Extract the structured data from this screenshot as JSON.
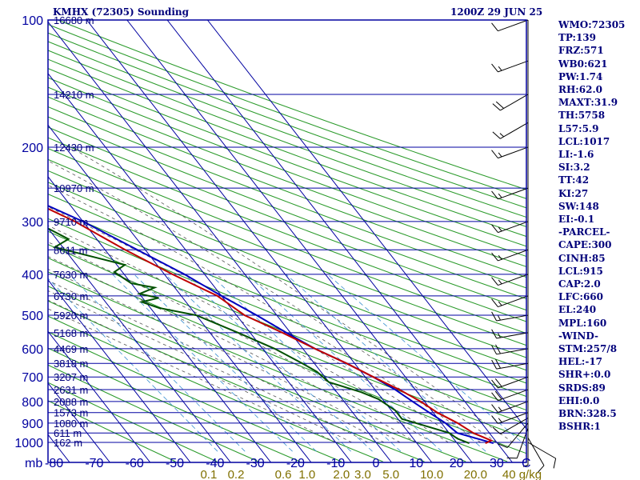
{
  "header": {
    "title": "KMHX (72305) Sounding",
    "datetime": "1200Z 29 JUN 25"
  },
  "indices": [
    "WMO:72305",
    "TP:139",
    "FRZ:571",
    "WB0:621",
    "PW:1.74",
    "RH:62.0",
    "MAXT:31.9",
    "TH:5758",
    "L57:5.9",
    "LCL:1017",
    "LI:-1.6",
    "SI:3.2",
    "TT:42",
    "KI:27",
    "SW:148",
    "EI:-0.1",
    "-PARCEL-",
    "CAPE:300",
    "CINH:85",
    "LCL:915",
    "CAP:2.0",
    "LFC:660",
    "EL:240",
    "MPL:160",
    "-WIND-",
    "STM:257/8",
    "HEL:-17",
    "SHR+:0.0",
    "SRDS:89",
    "EHI:0.0",
    "BRN:328.5",
    "BSHR:1"
  ],
  "colors": {
    "frame": "#0000a0",
    "isotherm": "#0000a0",
    "dry_adiabat": "#2a9a2a",
    "moist_adiabat": "#555555",
    "mixing_ratio": "#3a8fd0",
    "temperature": "#c00000",
    "dewpoint": "#005000",
    "parcel": "#0000c0",
    "mixing_label": "#807000",
    "text": "#00007b"
  },
  "chart_data": {
    "type": "skew-t",
    "pressure_levels": [
      100,
      200,
      300,
      400,
      500,
      600,
      700,
      800,
      900,
      1000
    ],
    "pressure_unit": "mb",
    "height_labels": [
      {
        "p": 100,
        "label": "16680 m"
      },
      {
        "p": 150,
        "label": "14210 m"
      },
      {
        "p": 200,
        "label": "12430 m"
      },
      {
        "p": 250,
        "label": "10970 m"
      },
      {
        "p": 300,
        "label": "9710 m"
      },
      {
        "p": 350,
        "label": "8611 m"
      },
      {
        "p": 400,
        "label": "7630 m"
      },
      {
        "p": 450,
        "label": "6730 m"
      },
      {
        "p": 500,
        "label": "5920 m"
      },
      {
        "p": 550,
        "label": "5168 m"
      },
      {
        "p": 600,
        "label": "4469 m"
      },
      {
        "p": 650,
        "label": "3818 m"
      },
      {
        "p": 700,
        "label": "3207 m"
      },
      {
        "p": 750,
        "label": "2631 m"
      },
      {
        "p": 800,
        "label": "2088 m"
      },
      {
        "p": 850,
        "label": "1573 m"
      },
      {
        "p": 900,
        "label": "1080 m"
      },
      {
        "p": 950,
        "label": "611 m"
      },
      {
        "p": 1000,
        "label": "162 m"
      }
    ],
    "temp_ticks": [
      -80,
      -70,
      -60,
      -50,
      -40,
      -30,
      -20,
      -10,
      0,
      10,
      20,
      30
    ],
    "temp_tick_labels": [
      "-80",
      "-70",
      "-60",
      "-50",
      "-40",
      "-30",
      "-20",
      "-10",
      "0",
      "10",
      "20",
      "30"
    ],
    "xlim": [
      -80,
      30
    ],
    "x_unit_label": "C",
    "mixing_ratio_labels": [
      "0.1",
      "0.2",
      "0.6",
      "1.0",
      "2.0",
      "3.0",
      "5.0",
      "10.0",
      "20.0",
      "40 g/kg"
    ],
    "mixing_ratios": [
      0.1,
      0.2,
      0.6,
      1.0,
      2.0,
      3.0,
      5.0,
      10.0,
      20.0,
      40.0
    ],
    "temperature_profile": [
      {
        "p": 100,
        "t": -69
      },
      {
        "p": 150,
        "t": -71
      },
      {
        "p": 200,
        "t": -55
      },
      {
        "p": 250,
        "t": -43
      },
      {
        "p": 300,
        "t": -32
      },
      {
        "p": 350,
        "t": -25
      },
      {
        "p": 400,
        "t": -18
      },
      {
        "p": 450,
        "t": -11
      },
      {
        "p": 500,
        "t": -8
      },
      {
        "p": 550,
        "t": -2
      },
      {
        "p": 600,
        "t": 3
      },
      {
        "p": 650,
        "t": 8
      },
      {
        "p": 700,
        "t": 12
      },
      {
        "p": 750,
        "t": 16
      },
      {
        "p": 800,
        "t": 19
      },
      {
        "p": 850,
        "t": 21
      },
      {
        "p": 900,
        "t": 24
      },
      {
        "p": 950,
        "t": 26
      },
      {
        "p": 990,
        "t": 29
      },
      {
        "p": 1005,
        "t": 27
      }
    ],
    "dewpoint_profile": [
      {
        "p": 100,
        "td": -79
      },
      {
        "p": 150,
        "td": -77
      },
      {
        "p": 200,
        "td": -60
      },
      {
        "p": 250,
        "td": -50
      },
      {
        "p": 265,
        "td": -45
      },
      {
        "p": 280,
        "td": -47
      },
      {
        "p": 300,
        "td": -42
      },
      {
        "p": 330,
        "td": -37
      },
      {
        "p": 345,
        "td": -42
      },
      {
        "p": 380,
        "td": -28
      },
      {
        "p": 395,
        "td": -32
      },
      {
        "p": 420,
        "td": -30
      },
      {
        "p": 430,
        "td": -25
      },
      {
        "p": 445,
        "td": -30
      },
      {
        "p": 455,
        "td": -26
      },
      {
        "p": 465,
        "td": -31
      },
      {
        "p": 480,
        "td": -28
      },
      {
        "p": 500,
        "td": -20
      },
      {
        "p": 550,
        "td": -13
      },
      {
        "p": 600,
        "td": -7
      },
      {
        "p": 650,
        "td": -3
      },
      {
        "p": 680,
        "td": -1
      },
      {
        "p": 720,
        "td": 0
      },
      {
        "p": 760,
        "td": 6
      },
      {
        "p": 790,
        "td": 9
      },
      {
        "p": 840,
        "td": 11
      },
      {
        "p": 880,
        "td": 11
      },
      {
        "p": 910,
        "td": 15
      },
      {
        "p": 950,
        "td": 20
      },
      {
        "p": 980,
        "td": 21
      },
      {
        "p": 1005,
        "td": 23
      }
    ],
    "parcel_profile": [
      {
        "p": 130,
        "t": -80
      },
      {
        "p": 150,
        "t": -74
      },
      {
        "p": 200,
        "t": -56
      },
      {
        "p": 250,
        "t": -42
      },
      {
        "p": 300,
        "t": -30
      },
      {
        "p": 350,
        "t": -22
      },
      {
        "p": 400,
        "t": -15
      },
      {
        "p": 450,
        "t": -10
      },
      {
        "p": 500,
        "t": -5
      },
      {
        "p": 550,
        "t": -1
      },
      {
        "p": 600,
        "t": 3
      },
      {
        "p": 650,
        "t": 8
      },
      {
        "p": 700,
        "t": 12
      },
      {
        "p": 750,
        "t": 15
      },
      {
        "p": 800,
        "t": 17
      },
      {
        "p": 850,
        "t": 19
      },
      {
        "p": 900,
        "t": 21
      },
      {
        "p": 950,
        "t": 22
      },
      {
        "p": 1005,
        "t": 29
      }
    ],
    "wind_profile": [
      {
        "p": 1000,
        "dir": 120,
        "spd": 10
      },
      {
        "p": 975,
        "dir": 150,
        "spd": 10
      },
      {
        "p": 950,
        "dir": 180,
        "spd": 5
      },
      {
        "p": 925,
        "dir": 200,
        "spd": 10
      },
      {
        "p": 900,
        "dir": 220,
        "spd": 10
      },
      {
        "p": 875,
        "dir": 240,
        "spd": 10
      },
      {
        "p": 850,
        "dir": 250,
        "spd": 15
      },
      {
        "p": 800,
        "dir": 250,
        "spd": 15
      },
      {
        "p": 750,
        "dir": 250,
        "spd": 20
      },
      {
        "p": 700,
        "dir": 250,
        "spd": 20
      },
      {
        "p": 650,
        "dir": 260,
        "spd": 20
      },
      {
        "p": 600,
        "dir": 260,
        "spd": 20
      },
      {
        "p": 550,
        "dir": 260,
        "spd": 15
      },
      {
        "p": 500,
        "dir": 260,
        "spd": 15
      },
      {
        "p": 450,
        "dir": 250,
        "spd": 15
      },
      {
        "p": 400,
        "dir": 250,
        "spd": 15
      },
      {
        "p": 350,
        "dir": 250,
        "spd": 15
      },
      {
        "p": 300,
        "dir": 250,
        "spd": 15
      },
      {
        "p": 250,
        "dir": 250,
        "spd": 15
      },
      {
        "p": 200,
        "dir": 250,
        "spd": 15
      },
      {
        "p": 175,
        "dir": 240,
        "spd": 15
      },
      {
        "p": 150,
        "dir": 240,
        "spd": 20
      },
      {
        "p": 125,
        "dir": 250,
        "spd": 15
      },
      {
        "p": 100,
        "dir": 250,
        "spd": 10
      }
    ]
  }
}
